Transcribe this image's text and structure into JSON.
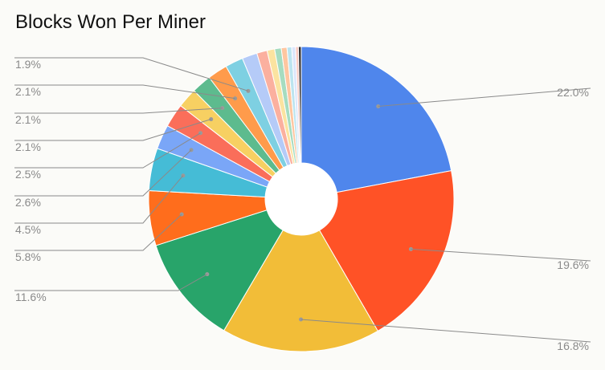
{
  "chart_data": {
    "type": "pie",
    "title": "Blocks Won Per Miner",
    "donut": true,
    "slices": [
      {
        "value": 22.0,
        "label": "22.0%",
        "color": "#4f86ec",
        "labeled": true
      },
      {
        "value": 19.6,
        "label": "19.6%",
        "color": "#ff5226",
        "labeled": true
      },
      {
        "value": 16.8,
        "label": "16.8%",
        "color": "#f2bd38",
        "labeled": true
      },
      {
        "value": 11.6,
        "label": "11.6%",
        "color": "#28a46a",
        "labeled": true
      },
      {
        "value": 5.8,
        "label": "5.8%",
        "color": "#ff6d1c",
        "labeled": true
      },
      {
        "value": 4.5,
        "label": "4.5%",
        "color": "#45bcd6",
        "labeled": true
      },
      {
        "value": 2.6,
        "label": "2.6%",
        "color": "#7aa6f7",
        "labeled": true
      },
      {
        "value": 2.5,
        "label": "2.5%",
        "color": "#fa6e5a",
        "labeled": true
      },
      {
        "value": 2.1,
        "label": "2.1%",
        "color": "#f7d062",
        "labeled": true
      },
      {
        "value": 2.1,
        "label": "2.1%",
        "color": "#5dbb8e",
        "labeled": true
      },
      {
        "value": 2.1,
        "label": "2.1%",
        "color": "#ff9b4b",
        "labeled": true
      },
      {
        "value": 1.9,
        "label": "1.9%",
        "color": "#7ed0e2",
        "labeled": true
      },
      {
        "value": 1.6,
        "label": "",
        "color": "#b5cbf8",
        "labeled": false
      },
      {
        "value": 1.1,
        "label": "",
        "color": "#fbb09f",
        "labeled": false
      },
      {
        "value": 0.8,
        "label": "",
        "color": "#fbe3a0",
        "labeled": false
      },
      {
        "value": 0.7,
        "label": "",
        "color": "#a6dcc0",
        "labeled": false
      },
      {
        "value": 0.6,
        "label": "",
        "color": "#ffc6a0",
        "labeled": false
      },
      {
        "value": 0.5,
        "label": "",
        "color": "#bce4ef",
        "labeled": false
      },
      {
        "value": 0.4,
        "label": "",
        "color": "#dbe6fb",
        "labeled": false
      },
      {
        "value": 0.3,
        "label": "",
        "color": "#f9c9c0",
        "labeled": false
      },
      {
        "value": 0.3,
        "label": "",
        "color": "#333333",
        "labeled": false
      }
    ]
  }
}
